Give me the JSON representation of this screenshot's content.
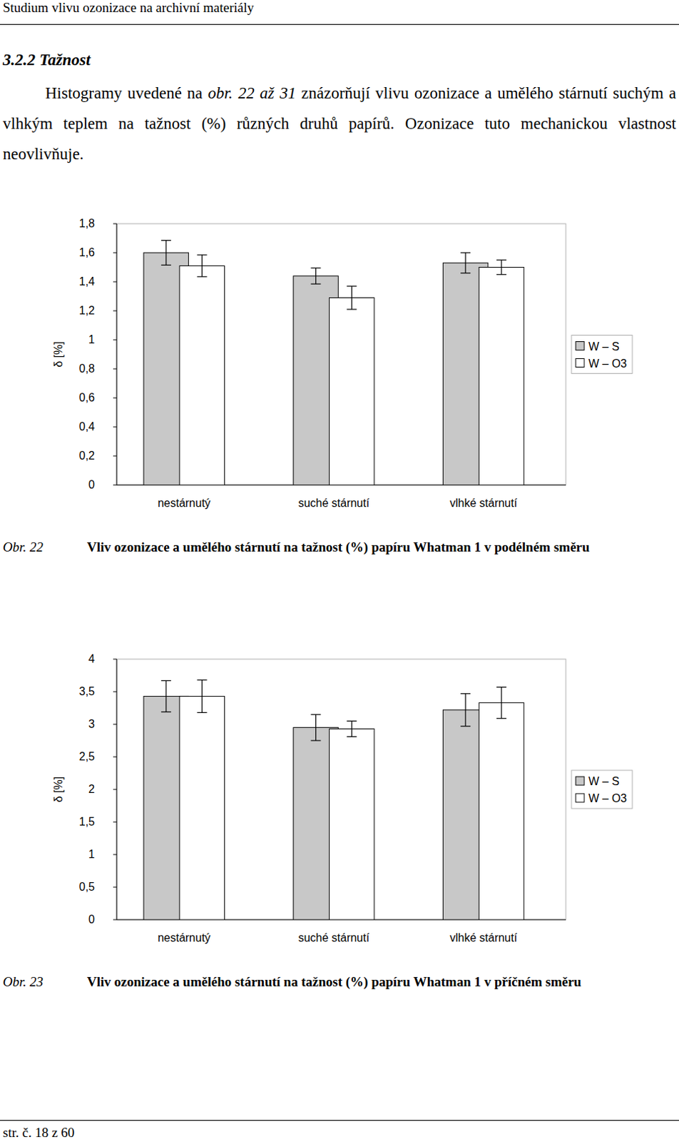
{
  "header": {
    "title": "Studium vlivu ozonizace na archivní materiály"
  },
  "section": {
    "heading": "3.2.2 Tažnost"
  },
  "paragraph": {
    "before": "Histogramy uvedené na ",
    "ref": "obr. 22 až 31",
    "after": " znázorňují vlivu ozonizace a umělého stárnutí suchým a vlhkým teplem na tažnost (%) různých druhů papírů. Ozonizace tuto mechanickou vlastnost neovlivňuje."
  },
  "captions": [
    {
      "label": "Obr. 22",
      "text": "Vliv ozonizace a umělého stárnutí na tažnost (%) papíru Whatman 1 v podélném směru"
    },
    {
      "label": "Obr. 23",
      "text": "Vliv ozonizace a umělého stárnutí na tažnost (%) papíru Whatman 1 v příčném směru"
    }
  ],
  "footer": {
    "text": "str. č. 18 z 60"
  },
  "chart_data": [
    {
      "type": "bar",
      "y_label": "δ [%]",
      "categories": [
        "nestárnutý",
        "suché stárnutí",
        "vlhké stárnutí"
      ],
      "series": [
        {
          "name": "W – S",
          "color": "#c8c8c8",
          "values": [
            1.6,
            1.44,
            1.53
          ],
          "errors": [
            0.085,
            0.055,
            0.07
          ]
        },
        {
          "name": "W – O3",
          "color": "#ffffff",
          "values": [
            1.51,
            1.29,
            1.5
          ],
          "errors": [
            0.075,
            0.08,
            0.05
          ]
        }
      ],
      "ylim": [
        0,
        1.8
      ],
      "yticks": [
        0,
        {
          "value": 0.2,
          "label": "0,2"
        },
        {
          "value": 0.4,
          "label": "0,4"
        },
        {
          "value": 0.6,
          "label": "0,6"
        },
        {
          "value": 0.8,
          "label": "0,8"
        },
        1,
        {
          "value": 1.2,
          "label": "1,2"
        },
        {
          "value": 1.4,
          "label": "1,4"
        },
        {
          "value": 1.6,
          "label": "1,6"
        },
        {
          "value": 1.8,
          "label": "1,8"
        }
      ],
      "grid": false,
      "legend": "right"
    },
    {
      "type": "bar",
      "y_label": "δ [%]",
      "categories": [
        "nestárnutý",
        "suché stárnutí",
        "vlhké stárnutí"
      ],
      "series": [
        {
          "name": "W – S",
          "color": "#c8c8c8",
          "values": [
            3.43,
            2.95,
            3.22
          ],
          "errors": [
            0.24,
            0.2,
            0.25
          ]
        },
        {
          "name": "W – O3",
          "color": "#ffffff",
          "values": [
            3.43,
            2.93,
            3.33
          ],
          "errors": [
            0.25,
            0.12,
            0.24
          ]
        }
      ],
      "ylim": [
        0,
        4
      ],
      "yticks": [
        0,
        {
          "value": 0.5,
          "label": "0,5"
        },
        1,
        {
          "value": 1.5,
          "label": "1,5"
        },
        2,
        {
          "value": 2.5,
          "label": "2,5"
        },
        3,
        {
          "value": 3.5,
          "label": "3,5"
        },
        4
      ],
      "grid": false,
      "legend": "right"
    }
  ]
}
